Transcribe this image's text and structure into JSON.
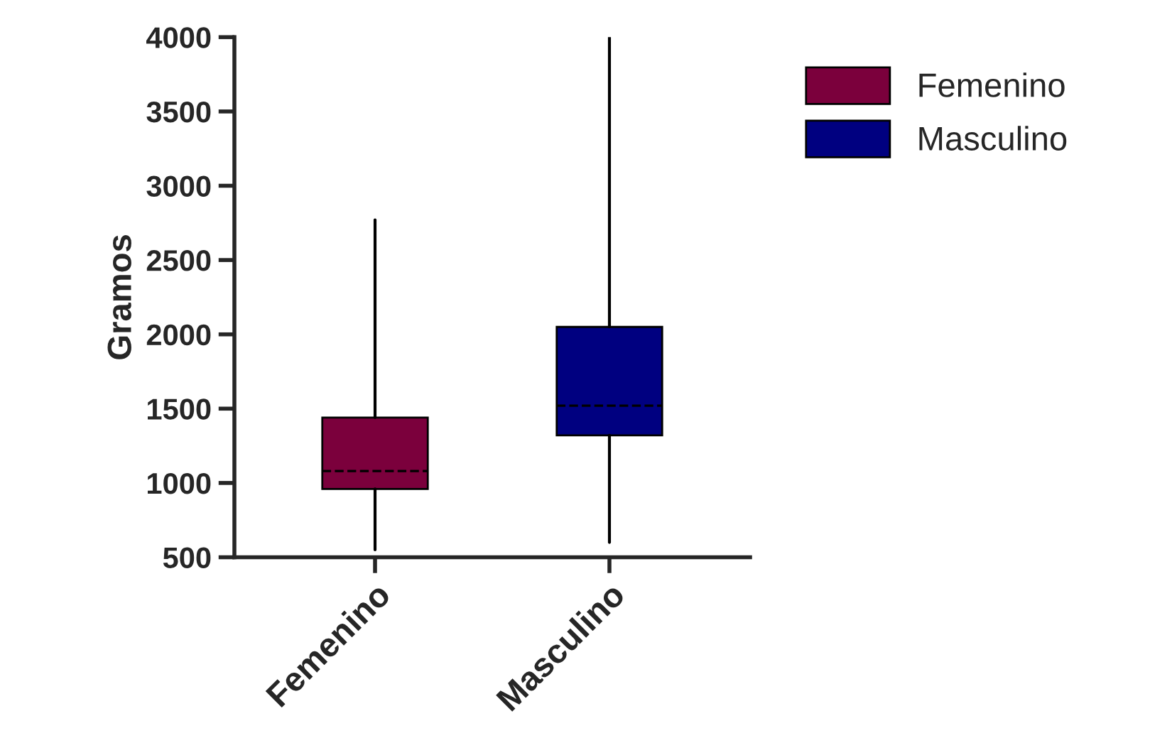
{
  "chart_data": {
    "type": "box",
    "ylabel": "Gramos",
    "categories": [
      "Femenino",
      "Masculino"
    ],
    "series": [
      {
        "name": "Femenino",
        "color": "#7b003c",
        "boxes": [
          {
            "low": 550,
            "q1": 960,
            "median": 1080,
            "q3": 1440,
            "high": 2770
          },
          null
        ]
      },
      {
        "name": "Masculino",
        "color": "#000080",
        "boxes": [
          null,
          {
            "low": 600,
            "q1": 1320,
            "median": 1520,
            "q3": 2050,
            "high": 4000
          }
        ]
      }
    ],
    "ylim": [
      500,
      4000
    ],
    "yticks": [
      500,
      1000,
      1500,
      2000,
      2500,
      3000,
      3500,
      4000
    ],
    "legend": "top right",
    "grid": false
  }
}
